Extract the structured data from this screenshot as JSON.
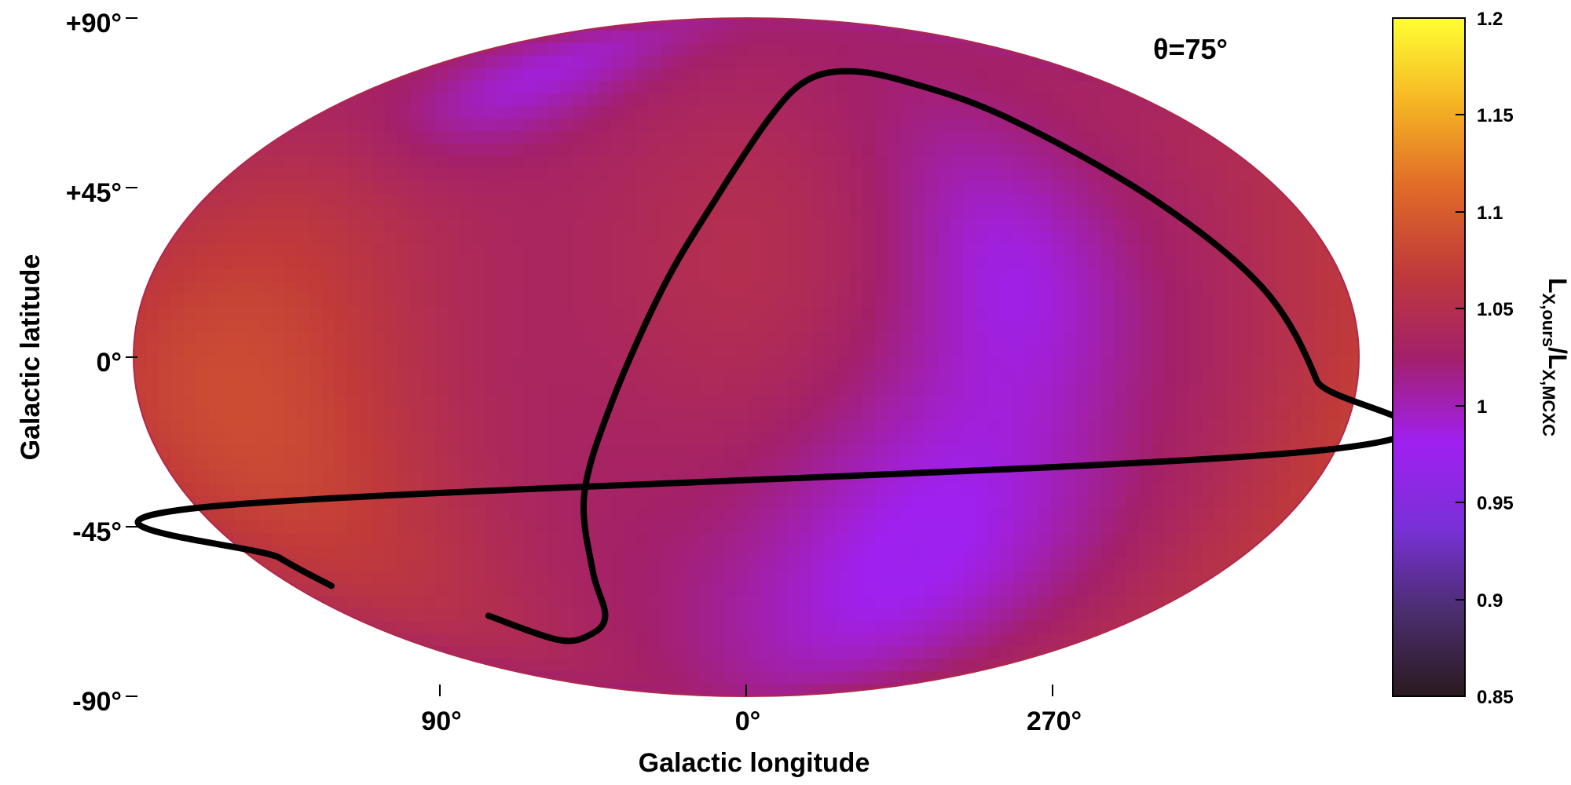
{
  "chart_data": {
    "type": "heatmap",
    "projection": "mollweide",
    "annotation": "θ=75°",
    "xlabel": "Galactic longitude",
    "ylabel": "Galactic latitude",
    "x_ticks": [
      "90°",
      "0°",
      "270°"
    ],
    "x_tick_values": [
      90,
      0,
      270
    ],
    "y_ticks": [
      "+90°",
      "+45°",
      "0°",
      "-45°",
      "-90°"
    ],
    "y_tick_values": [
      90,
      45,
      0,
      -45,
      -90
    ],
    "colorbar": {
      "label_main": "L",
      "label_sub1": "X,ours",
      "label_sep": "/",
      "label_main2": "L",
      "label_sub2": "X,MCXC",
      "min": 0.85,
      "max": 1.2,
      "ticks": [
        "1.2",
        "1.15",
        "1.1",
        "1.05",
        "1",
        "0.95",
        "0.9",
        "0.85"
      ],
      "tick_values": [
        1.2,
        1.15,
        1.1,
        1.05,
        1.0,
        0.95,
        0.9,
        0.85
      ],
      "stops": [
        "#2b1a1f",
        "#4a2e6e",
        "#7a30d8",
        "#a020f0",
        "#a3206a",
        "#c03a3a",
        "#e06a28",
        "#f5b524",
        "#ffff33"
      ]
    },
    "field": {
      "base_value": 1.02,
      "blobs": [
        {
          "lon": 150,
          "lat": -10,
          "value": 1.085,
          "sigma": 45
        },
        {
          "lon": 300,
          "lat": -45,
          "value": 0.975,
          "sigma": 30
        },
        {
          "lon": 280,
          "lat": 20,
          "value": 0.985,
          "sigma": 22
        },
        {
          "lon": 110,
          "lat": 65,
          "value": 0.975,
          "sigma": 15
        },
        {
          "lon": 0,
          "lat": 20,
          "value": 1.05,
          "sigma": 35
        }
      ]
    },
    "curve": {
      "color": "#000000",
      "points": [
        [
          117,
          -60
        ],
        [
          100,
          -67
        ],
        [
          80,
          -65.5
        ],
        [
          64,
          -60
        ],
        [
          58,
          -48
        ],
        [
          52,
          -30
        ],
        [
          40,
          -10
        ],
        [
          25,
          15
        ],
        [
          10,
          35
        ],
        [
          -10,
          55
        ],
        [
          -30,
          65
        ],
        [
          -55,
          68
        ],
        [
          -80,
          65
        ],
        [
          -108,
          55
        ],
        [
          -135,
          35
        ],
        [
          -155,
          15
        ],
        [
          -168,
          -5
        ],
        [
          -178,
          -20
        ],
        [
          178,
          -33
        ],
        [
          170,
          -45
        ],
        [
          165,
          -52
        ]
      ]
    }
  }
}
